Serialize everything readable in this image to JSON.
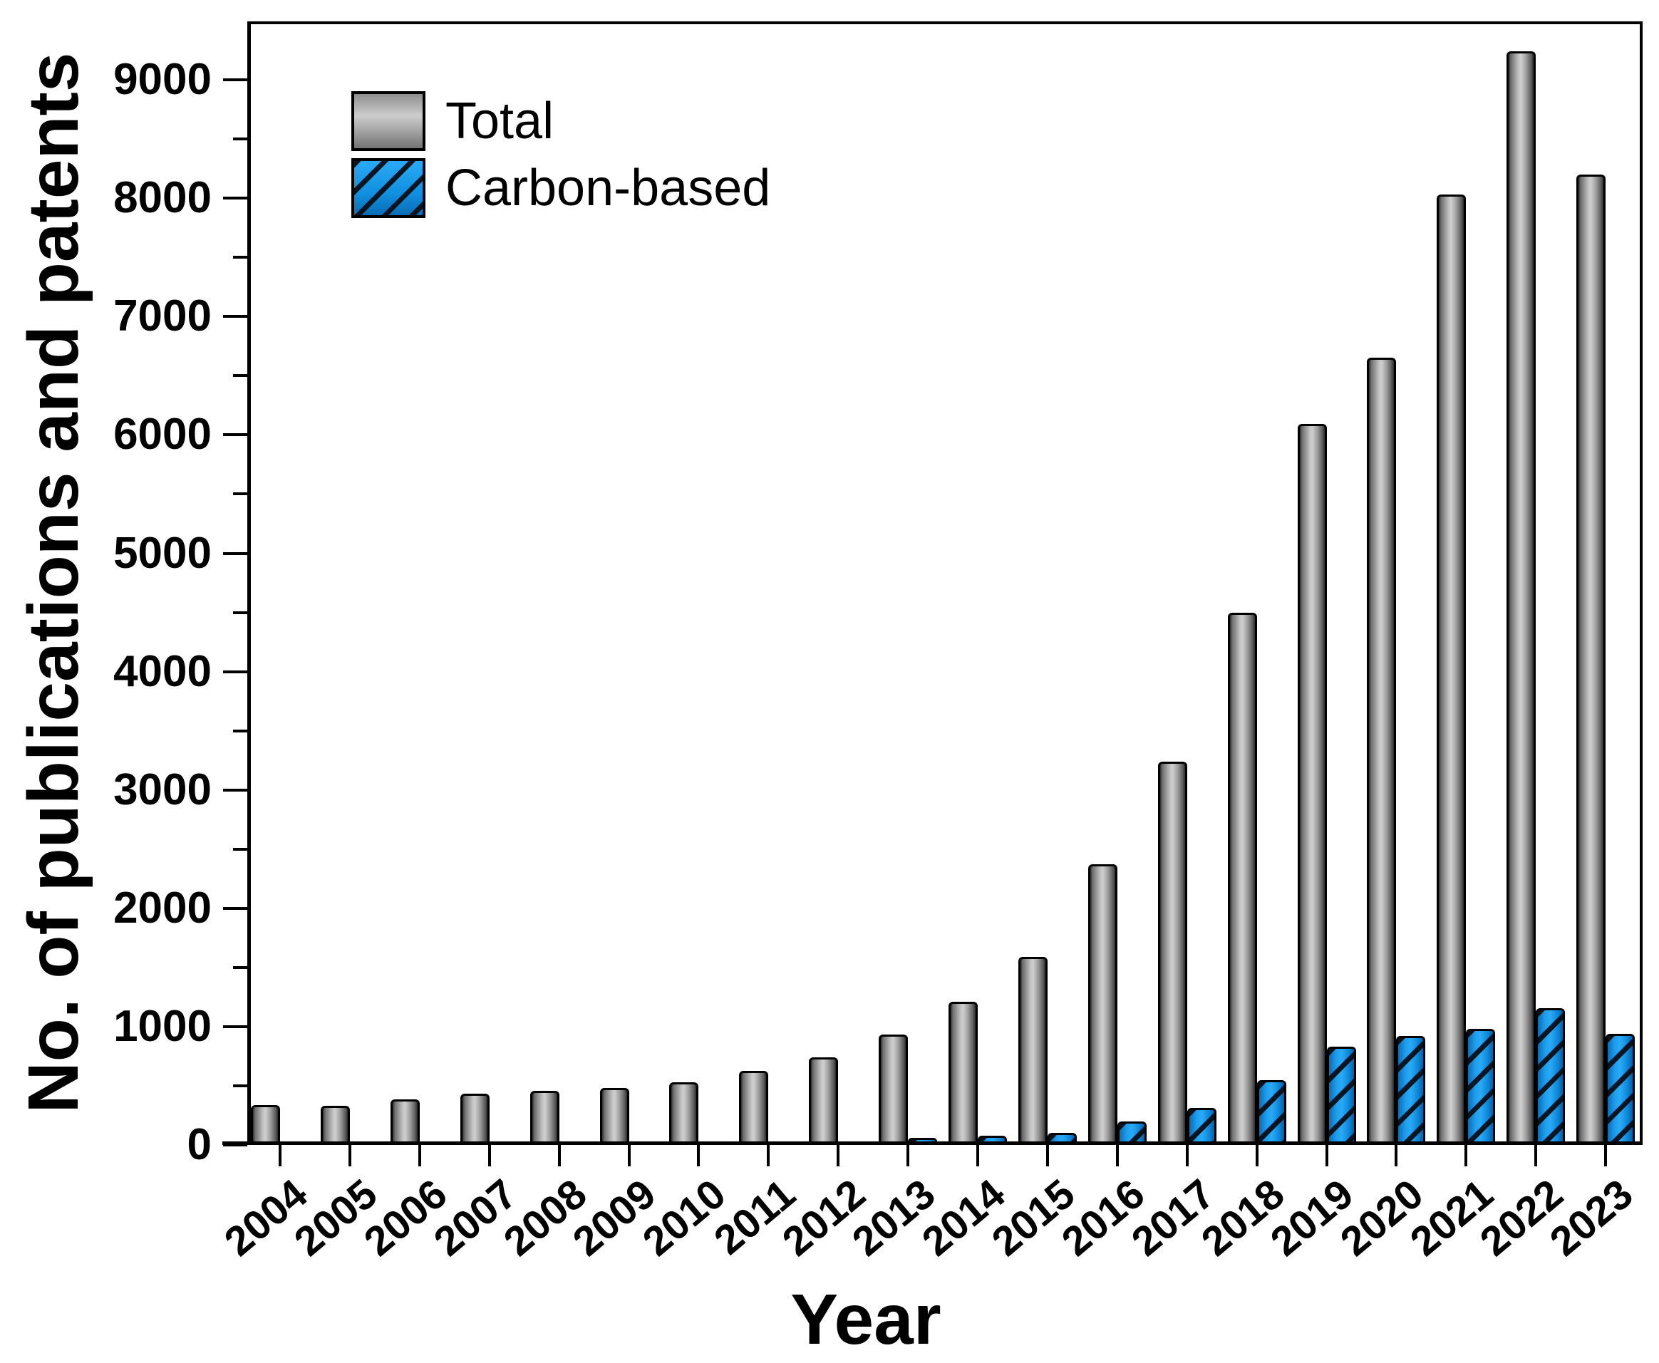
{
  "figure": {
    "background": "#ffffff",
    "axis_color": "#000000"
  },
  "chart_data": {
    "type": "bar",
    "title": "",
    "xlabel": "Year",
    "ylabel": "No. of publications and patents",
    "categories": [
      "2004",
      "2005",
      "2006",
      "2007",
      "2008",
      "2009",
      "2010",
      "2011",
      "2012",
      "2013",
      "2014",
      "2015",
      "2016",
      "2017",
      "2018",
      "2019",
      "2020",
      "2021",
      "2022",
      "2023"
    ],
    "series": [
      {
        "name": "Total",
        "color": "#9a9a9a",
        "style": "solid-gray-gradient",
        "values": [
          310,
          300,
          355,
          405,
          430,
          450,
          500,
          595,
          710,
          905,
          1180,
          1560,
          2340,
          3210,
          4470,
          6060,
          6620,
          8000,
          9210,
          8170
        ]
      },
      {
        "name": "Carbon-based",
        "color": "#149ae9",
        "style": "blue-diagonal-hatch",
        "values": [
          0,
          0,
          0,
          0,
          0,
          0,
          0,
          0,
          0,
          30,
          50,
          75,
          170,
          285,
          520,
          800,
          890,
          950,
          1125,
          910
        ]
      }
    ],
    "ylim": [
      0,
      9500
    ],
    "ytick_step": 1000,
    "ytick_minor_step": 500,
    "ytick_labels": [
      "0",
      "1000",
      "2000",
      "3000",
      "4000",
      "5000",
      "6000",
      "7000",
      "8000",
      "9000"
    ],
    "legend": {
      "position": "top-left-inside",
      "entries": [
        "Total",
        "Carbon-based"
      ]
    },
    "grid": false
  }
}
